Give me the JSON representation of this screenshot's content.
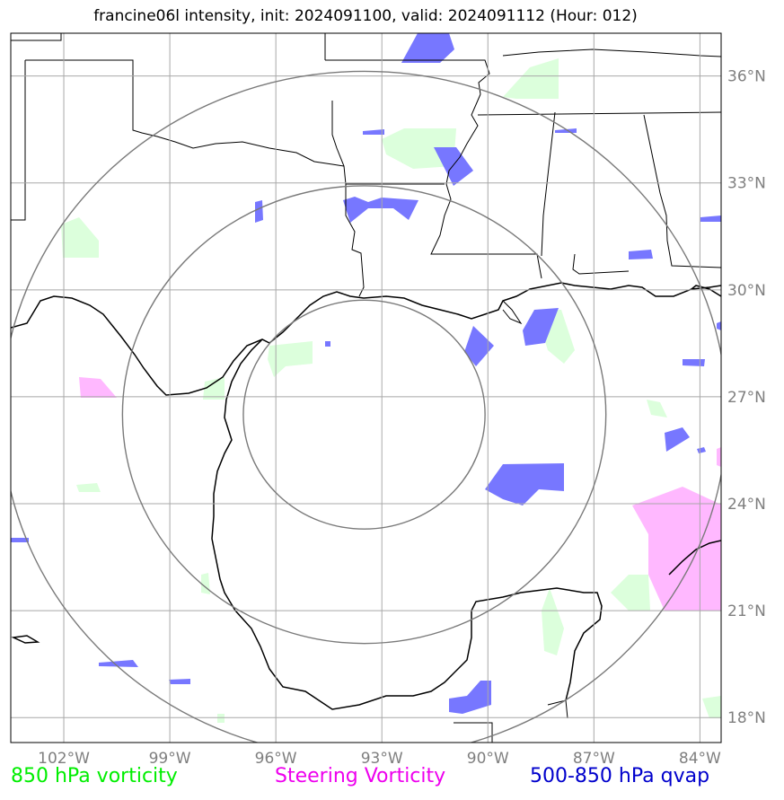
{
  "title": "francine06l intensity, init: 2024091100, valid: 2024091112 (Hour: 012)",
  "lon_ticks": [
    "102°W",
    "99°W",
    "96°W",
    "93°W",
    "90°W",
    "87°W",
    "84°W"
  ],
  "lat_ticks": [
    "36°N",
    "33°N",
    "30°N",
    "27°N",
    "24°N",
    "21°N",
    "18°N"
  ],
  "map_extent": {
    "lon_min": -103.5,
    "lon_max": -83.4,
    "lat_min": 17.3,
    "lat_max": 37.2
  },
  "storm_center": {
    "lon": -93.5,
    "lat": 26.5
  },
  "range_rings_deg": [
    3,
    6,
    9
  ],
  "legend": {
    "vorticity_850": "850 hPa vorticity",
    "steering_vorticity": "Steering Vorticity",
    "qvap_500_850": "500-850 hPa qvap"
  },
  "colors": {
    "vorticity_850": "#00ee00",
    "vorticity_fill": "#dcffdc",
    "steering_vorticity": "#ee00ee",
    "steering_fill": "#ffb8ff",
    "qvap": "#0000cc",
    "qvap_fill": "#7777ff",
    "grid": "#a8a8a8",
    "rings": "#7a7a7a",
    "coast": "#000000"
  }
}
